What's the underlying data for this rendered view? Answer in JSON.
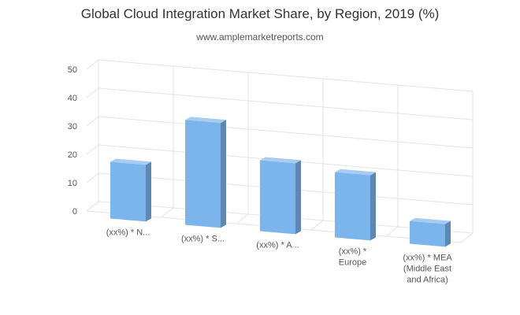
{
  "chart_data": {
    "type": "bar",
    "title": "Global Cloud Integration Market Share, by Region, 2019 (%)",
    "subtitle": "www.amplemarketreports.com",
    "categories": [
      [
        "(xx%) * N..."
      ],
      [
        "(xx%) * S..."
      ],
      [
        "(xx%) * A..."
      ],
      [
        "(xx%) *",
        "Europe"
      ],
      [
        "(xx%) * MEA",
        "(Middle East",
        "and Africa)"
      ]
    ],
    "values": [
      20,
      37,
      25,
      23,
      8
    ],
    "ylim": [
      0,
      50
    ],
    "yticks": [
      0,
      10,
      20,
      30,
      40,
      50
    ],
    "grid": true,
    "colors": {
      "bar_front": "#7cb5ec",
      "bar_side": "#5d88b1",
      "bar_top": "#a7cbf1",
      "grid": "#e3e3e3",
      "axis_text": "#555555"
    }
  }
}
